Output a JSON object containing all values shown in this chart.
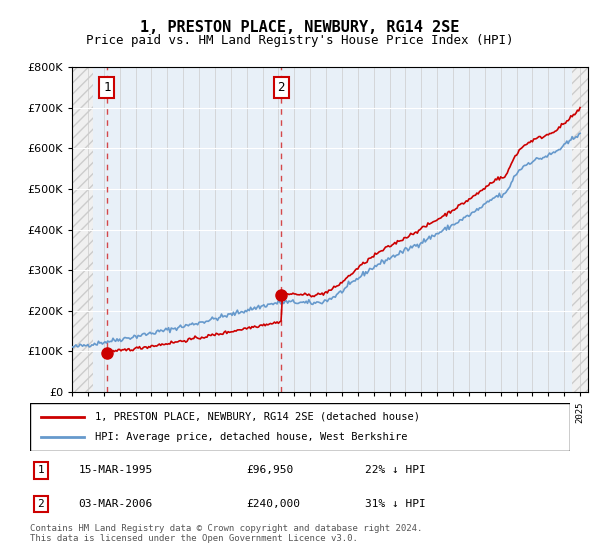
{
  "title": "1, PRESTON PLACE, NEWBURY, RG14 2SE",
  "subtitle": "Price paid vs. HM Land Registry's House Price Index (HPI)",
  "legend_line1": "1, PRESTON PLACE, NEWBURY, RG14 2SE (detached house)",
  "legend_line2": "HPI: Average price, detached house, West Berkshire",
  "table_rows": [
    {
      "num": "1",
      "date": "15-MAR-1995",
      "price": "£96,950",
      "hpi": "22% ↓ HPI"
    },
    {
      "num": "2",
      "date": "03-MAR-2006",
      "price": "£240,000",
      "hpi": "31% ↓ HPI"
    }
  ],
  "footnote": "Contains HM Land Registry data © Crown copyright and database right 2024.\nThis data is licensed under the Open Government Licence v3.0.",
  "price_paid_color": "#cc0000",
  "hpi_color": "#6699cc",
  "hatch_color": "#dddddd",
  "sale1_year": 1995.2,
  "sale1_price": 96950,
  "sale2_year": 2006.17,
  "sale2_price": 240000,
  "ylim": [
    0,
    800000
  ],
  "xlim_start": 1993,
  "xlim_end": 2025.5
}
